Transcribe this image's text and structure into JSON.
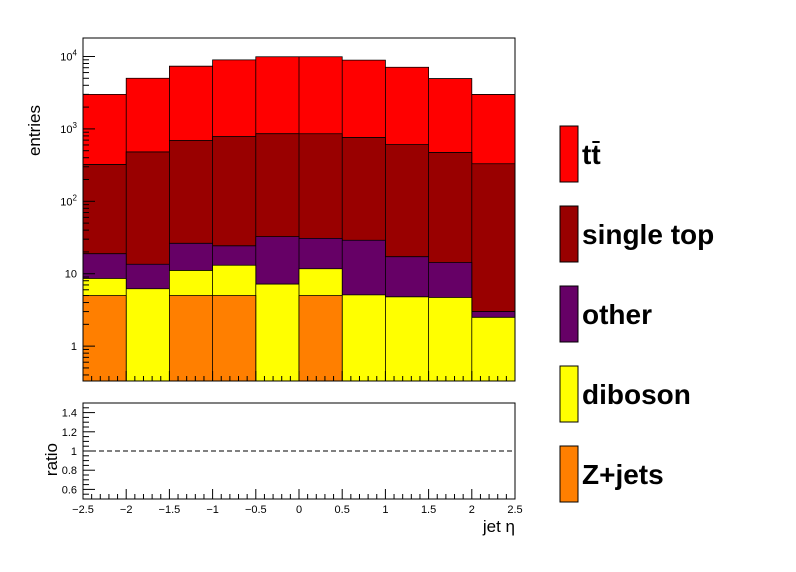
{
  "chart_data": [
    {
      "type": "area",
      "stacked": true,
      "yscale": "log",
      "ylabel": "entries",
      "xlim": [
        -2.5,
        2.5
      ],
      "ylim": [
        0.33,
        18000
      ],
      "y_ticks": [
        {
          "value": 1,
          "label": "1"
        },
        {
          "value": 10,
          "label": "10"
        },
        {
          "value": 100,
          "label": "10^2"
        },
        {
          "value": 1000,
          "label": "10^3"
        },
        {
          "value": 10000,
          "label": "10^4"
        }
      ],
      "bin_edges": [
        -2.5,
        -2,
        -1.5,
        -1,
        -0.5,
        0,
        0.5,
        1,
        1.5,
        2,
        2.5
      ],
      "series": [
        {
          "name": "Z+jets",
          "color": "#ff7f00",
          "values": [
            5,
            0,
            5,
            5,
            0,
            5,
            0,
            0,
            0,
            0
          ]
        },
        {
          "name": "diboson",
          "color": "#ffff00",
          "values": [
            3.6,
            6.2,
            6.1,
            8.1,
            7.2,
            6.7,
            5.1,
            4.8,
            4.7,
            2.5
          ]
        },
        {
          "name": "other",
          "color": "#660066",
          "values": [
            10.3,
            7.3,
            15.2,
            11.2,
            25.3,
            19.1,
            23.9,
            12.4,
            9.6,
            0.5
          ]
        },
        {
          "name": "single top",
          "color": "#990000",
          "values": [
            304,
            467,
            664,
            764,
            826,
            826,
            733,
            591,
            459,
            327
          ]
        },
        {
          "name": "tt̄",
          "color": "#ff0000",
          "values": [
            2677,
            4520,
            6650,
            8200,
            9060,
            9070,
            8140,
            6490,
            4480,
            2660
          ]
        }
      ]
    },
    {
      "type": "line",
      "ylabel": "ratio",
      "xlabel": "jet η",
      "xlim": [
        -2.5,
        2.5
      ],
      "ylim": [
        0.5,
        1.5
      ],
      "x_ticks": [
        "−2.5",
        "−2",
        "−1.5",
        "−1",
        "−0.5",
        "0",
        "0.5",
        "1",
        "1.5",
        "2",
        "2.5"
      ],
      "x_tick_values": [
        -2.5,
        -2,
        -1.5,
        -1,
        -0.5,
        0,
        0.5,
        1,
        1.5,
        2,
        2.5
      ],
      "y_ticks": [
        "0.6",
        "0.8",
        "1",
        "1.2",
        "1.4"
      ],
      "y_tick_values": [
        0.6,
        0.8,
        1.0,
        1.2,
        1.4
      ],
      "reference_line": 1.0
    }
  ],
  "legend": [
    {
      "label": "tt",
      "overline": "t",
      "color": "#ff0000"
    },
    {
      "label": "single top",
      "color": "#990000"
    },
    {
      "label": "other",
      "color": "#660066"
    },
    {
      "label": "diboson",
      "color": "#ffff00"
    },
    {
      "label": "Z+jets",
      "color": "#ff7f00"
    }
  ]
}
